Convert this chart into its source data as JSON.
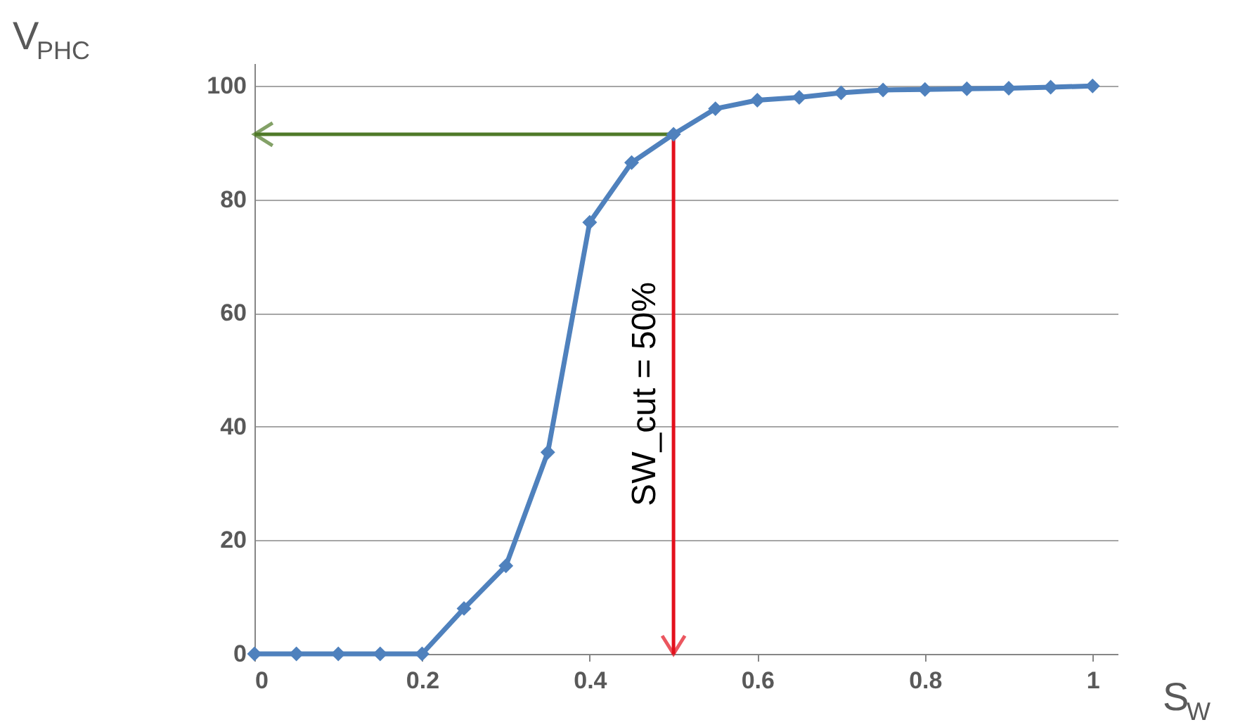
{
  "chart_data": {
    "type": "line",
    "xlabel": "S$_{W}$",
    "ylabel": "V$_{PHC}$",
    "x": [
      0,
      0.05,
      0.1,
      0.15,
      0.2,
      0.25,
      0.3,
      0.35,
      0.4,
      0.45,
      0.5,
      0.55,
      0.6,
      0.65,
      0.7,
      0.75,
      0.8,
      0.85,
      0.9,
      0.95,
      1
    ],
    "series": [
      {
        "color": "#4f81bd",
        "values": [
          0,
          0,
          0,
          0,
          0,
          8,
          15.5,
          35.5,
          76,
          86.5,
          91.5,
          96,
          97.5,
          98,
          98.8,
          99.3,
          99.4,
          99.5,
          99.6,
          99.8,
          100
        ]
      }
    ],
    "xlim": [
      0,
      1.03
    ],
    "ylim": [
      0,
      104
    ],
    "xticks": [
      0,
      0.2,
      0.4,
      0.6,
      0.8,
      1
    ],
    "yticks": [
      0,
      20,
      40,
      60,
      80,
      100
    ],
    "grid": "y",
    "marker": "diamond",
    "line_style": "solid",
    "legend": false,
    "ref_lines": [
      {
        "axis": "x",
        "value": 0.5,
        "label": "SW_cut = 50%",
        "color": "#e3101c"
      },
      {
        "axis": "y",
        "value": 91.5,
        "color": "#4f7a28"
      }
    ]
  }
}
